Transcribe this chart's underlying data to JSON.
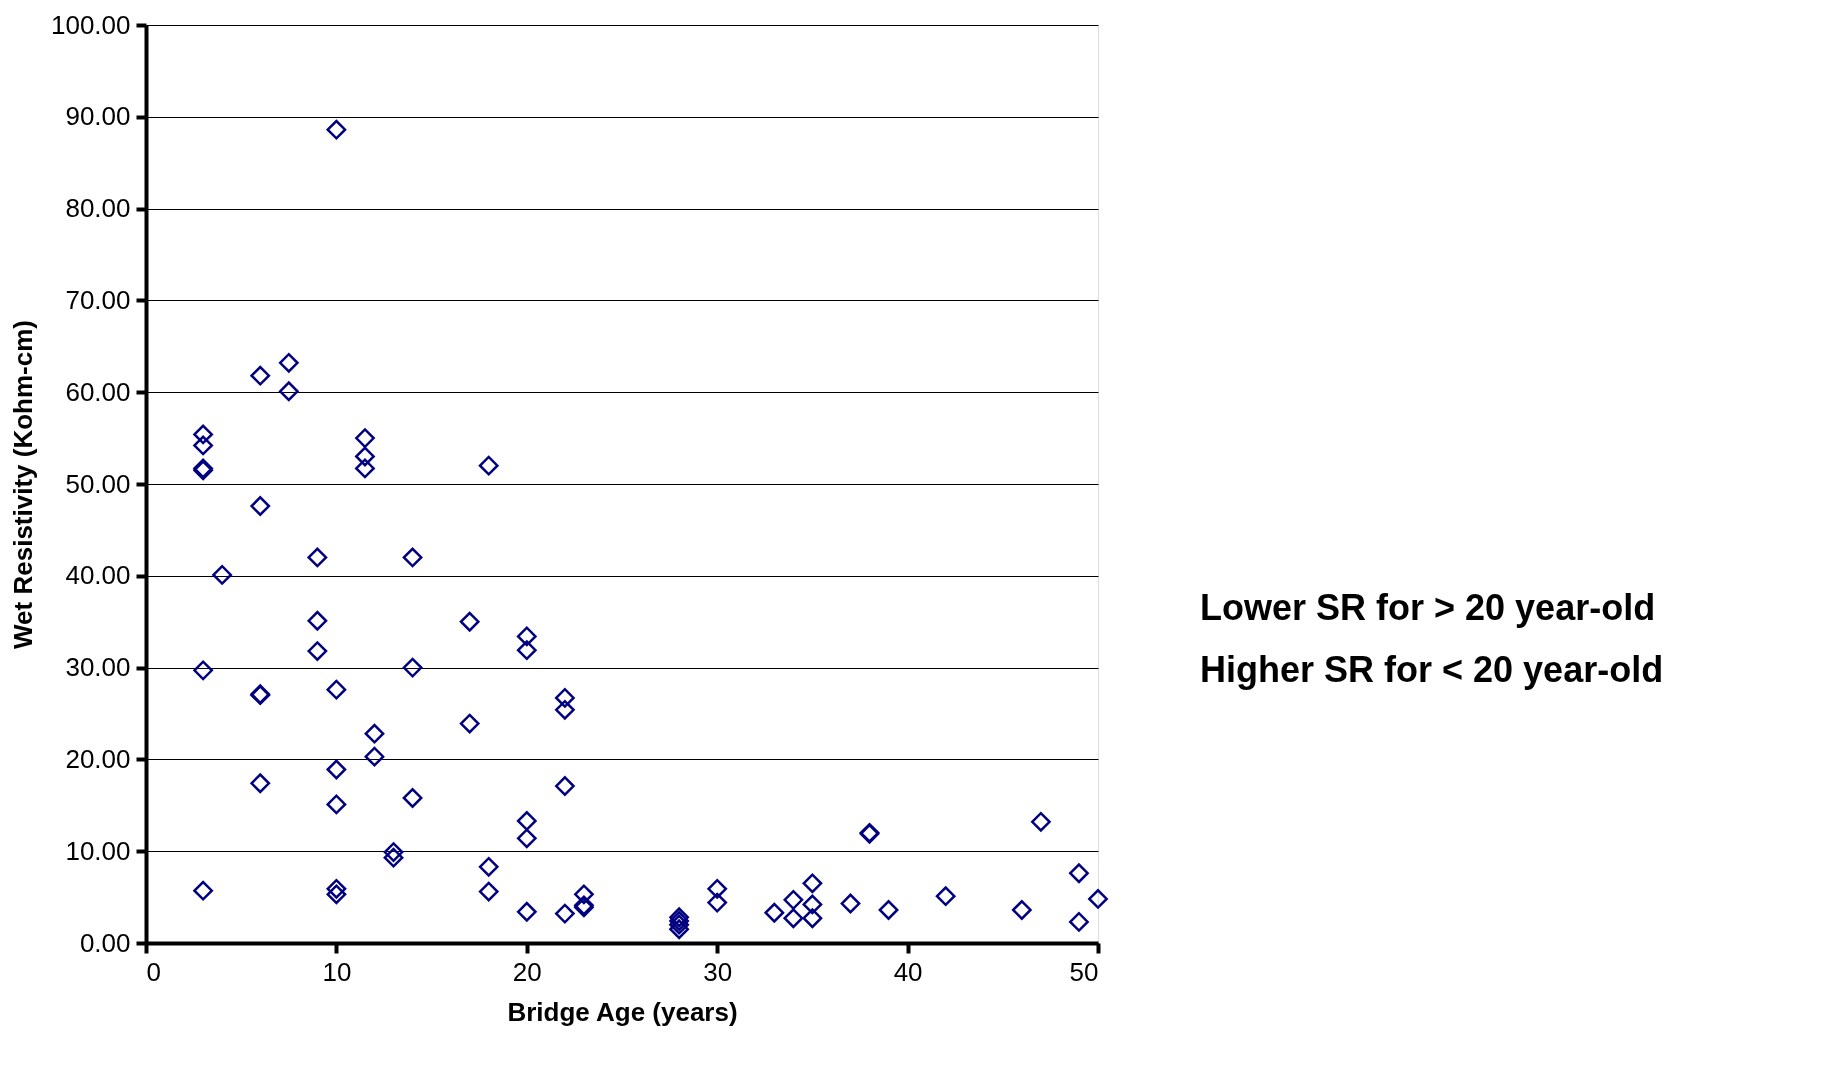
{
  "chart_data": {
    "type": "scatter",
    "xlabel": "Bridge Age (years)",
    "ylabel": "Wet Resistivity (Kohm-cm)",
    "xlim": [
      0,
      50
    ],
    "xticks": [
      0,
      10,
      20,
      30,
      40,
      50
    ],
    "ylim": [
      0,
      100
    ],
    "yticks": [
      {
        "value": 0,
        "label": "0.00"
      },
      {
        "value": 10,
        "label": "10.00"
      },
      {
        "value": 20,
        "label": "20.00"
      },
      {
        "value": 30,
        "label": "30.00"
      },
      {
        "value": 40,
        "label": "40.00"
      },
      {
        "value": 50,
        "label": "50.00"
      },
      {
        "value": 60,
        "label": "60.00"
      },
      {
        "value": 70,
        "label": "70.00"
      },
      {
        "value": 80,
        "label": "80.00"
      },
      {
        "value": 90,
        "label": "90.00"
      },
      {
        "value": 100,
        "label": "100.00"
      }
    ],
    "grid": "y",
    "marker": "diamond",
    "annotations": [
      "Lower SR for    > 20 year-old",
      "Higher SR for   < 20 year-old"
    ],
    "series": [
      {
        "color": "#000080",
        "x": [
          3,
          3,
          3,
          3,
          3,
          3,
          4,
          6,
          6,
          6,
          6,
          6,
          7.5,
          7.5,
          9,
          9,
          9,
          10,
          10,
          10,
          10,
          10,
          10,
          11.5,
          11.5,
          11.5,
          12,
          12,
          13,
          13,
          14,
          14,
          14,
          17,
          17,
          18,
          18,
          18,
          20,
          20,
          20,
          20,
          20,
          22,
          22,
          22,
          22,
          23,
          23,
          23,
          28,
          28,
          28,
          28,
          30,
          30,
          33,
          34,
          34,
          35,
          35,
          35,
          37,
          38,
          38,
          39,
          42,
          46,
          47,
          49,
          49,
          50
        ],
        "values": [
          55.4,
          54.2,
          51.7,
          51.5,
          29.7,
          5.7,
          40.1,
          61.8,
          47.6,
          27.1,
          27.0,
          17.4,
          63.2,
          60.1,
          42.0,
          35.1,
          31.8,
          88.6,
          27.6,
          18.9,
          15.1,
          5.9,
          5.3,
          55.0,
          53.0,
          51.7,
          22.8,
          20.3,
          9.9,
          9.3,
          42.0,
          30.0,
          15.8,
          35.0,
          23.9,
          52.0,
          8.3,
          5.6,
          33.4,
          31.9,
          13.3,
          11.4,
          3.4,
          26.7,
          25.4,
          17.1,
          3.2,
          5.3,
          4.1,
          3.9,
          2.8,
          2.4,
          2.0,
          1.5,
          5.9,
          4.4,
          3.3,
          4.7,
          2.7,
          6.5,
          4.2,
          2.7,
          4.3,
          12.0,
          11.9,
          3.6,
          5.1,
          3.6,
          13.2,
          7.6,
          2.3,
          4.8
        ]
      }
    ]
  }
}
